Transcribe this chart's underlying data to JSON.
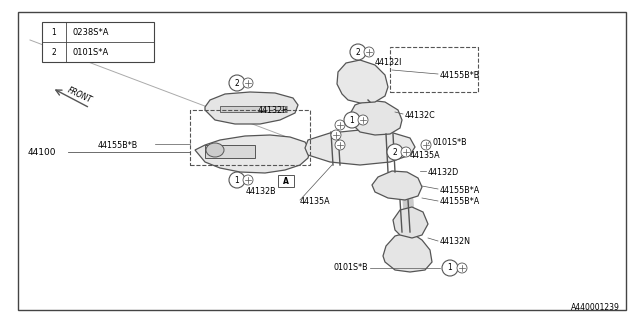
{
  "bg_color": "#ffffff",
  "line_color": "#555555",
  "text_color": "#000000",
  "diagram_id": "A440001239",
  "legend": [
    {
      "symbol": "1",
      "code": "0238S*A"
    },
    {
      "symbol": "2",
      "code": "0101S*A"
    }
  ]
}
